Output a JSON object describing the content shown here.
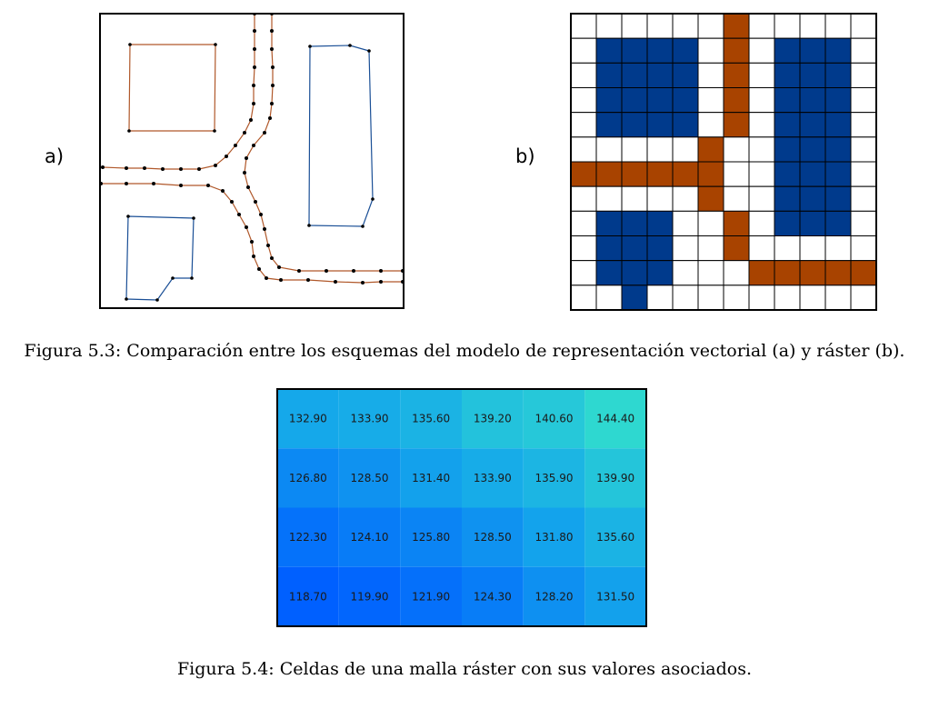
{
  "figure_a": {
    "label": "a)"
  },
  "figure_b": {
    "label": "b)",
    "cols": 12,
    "rows": 12,
    "colors": {
      "water": "#003a8c",
      "road": "#a84300",
      "empty": "#ffffff",
      "grid": "#000000"
    },
    "cells": [
      "......R.....",
      ".WWWW.R.WWW.",
      ".WWWW.R.WWW.",
      ".WWWW.R.WWW.",
      ".WWWW.R.WWW.",
      ".....R..WWW.",
      "RRRRRR..WWW.",
      ".....R..WWW.",
      ".WWW..R.WWW.",
      ".WWW..R.....",
      ".WWW...RRRRR",
      "..W........."
    ]
  },
  "caption_53": "Figura 5.3: Comparación entre los esquemas del modelo de representación vectorial (a) y ráster (b).",
  "raster_grid": {
    "rows": [
      [
        "132.90",
        "133.90",
        "135.60",
        "139.20",
        "140.60",
        "144.40"
      ],
      [
        "126.80",
        "128.50",
        "131.40",
        "133.90",
        "135.90",
        "139.90"
      ],
      [
        "122.30",
        "124.10",
        "125.80",
        "128.50",
        "131.80",
        "135.60"
      ],
      [
        "118.70",
        "119.90",
        "121.90",
        "124.30",
        "128.20",
        "131.50"
      ]
    ],
    "color_scale": {
      "low": "#0060ff",
      "mid": "#15a8ea",
      "high": "#2ed8d0"
    }
  },
  "caption_54": "Figura 5.4: Celdas de una malla ráster con sus valores asociados."
}
